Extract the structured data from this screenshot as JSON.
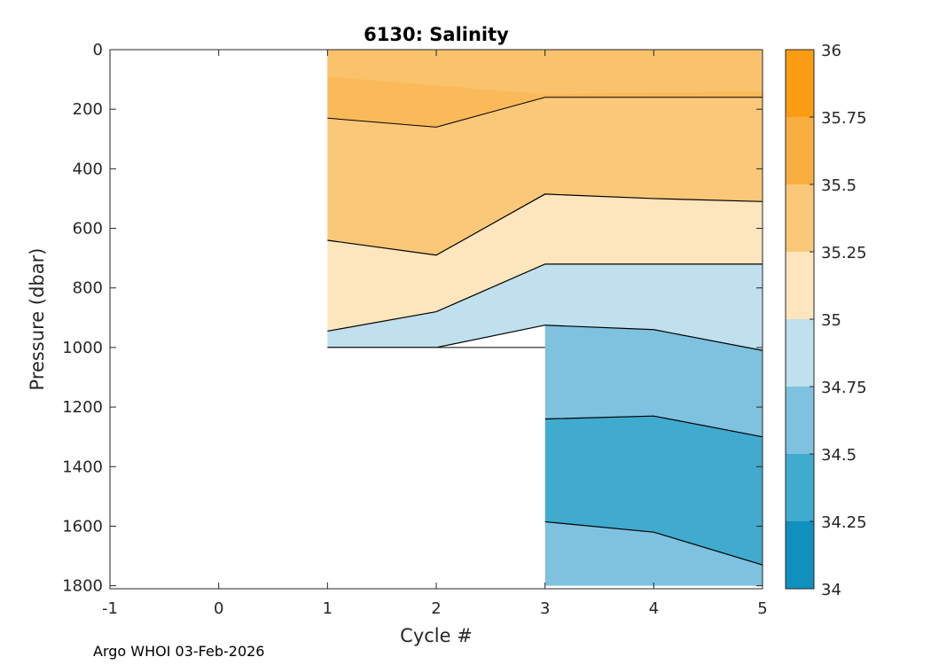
{
  "chart_data": {
    "type": "heatmap",
    "title": "6130:  Salinity",
    "xlabel": "Cycle #",
    "ylabel": "Pressure (dbar)",
    "xlim": [
      -1,
      5
    ],
    "ylim": [
      0,
      1810
    ],
    "y_reversed": true,
    "x_ticks": [
      "-1",
      "0",
      "1",
      "2",
      "3",
      "4",
      "5"
    ],
    "y_ticks": [
      "0",
      "200",
      "400",
      "600",
      "800",
      "1000",
      "1200",
      "1400",
      "1600",
      "1800"
    ],
    "colorbar": {
      "min": 34,
      "max": 36,
      "ticks": [
        "34",
        "34.25",
        "34.5",
        "34.75",
        "35",
        "35.25",
        "35.5",
        "35.75",
        "36"
      ],
      "levels": [
        {
          "from": 34.0,
          "to": 34.25,
          "color": "#0f90bf"
        },
        {
          "from": 34.25,
          "to": 34.5,
          "color": "#40aacf"
        },
        {
          "from": 34.5,
          "to": 34.75,
          "color": "#7ec2df"
        },
        {
          "from": 34.75,
          "to": 35.0,
          "color": "#bfe0ec"
        },
        {
          "from": 35.0,
          "to": 35.25,
          "color": "#fde5bd"
        },
        {
          "from": 35.25,
          "to": 35.5,
          "color": "#fac878"
        },
        {
          "from": 35.5,
          "to": 35.75,
          "color": "#faae40"
        },
        {
          "from": 35.75,
          "to": 36.0,
          "color": "#fb9c14"
        }
      ]
    },
    "profiles": [
      {
        "cycle": 1,
        "max_pressure": 1000
      },
      {
        "cycle": 2,
        "max_pressure": 1000
      },
      {
        "cycle": 3,
        "max_pressure": 1800
      },
      {
        "cycle": 4,
        "max_pressure": 1800
      },
      {
        "cycle": 5,
        "max_pressure": 1800
      }
    ],
    "contours": [
      {
        "level": 35.25,
        "pressure_by_cycle": [
          [
            1,
            640
          ],
          [
            2,
            690
          ],
          [
            3,
            485
          ],
          [
            4,
            500
          ],
          [
            5,
            510
          ]
        ]
      },
      {
        "level": 35.0,
        "pressure_by_cycle": [
          [
            1,
            945
          ],
          [
            2,
            880
          ],
          [
            3,
            720
          ],
          [
            4,
            720
          ],
          [
            5,
            720
          ]
        ]
      },
      {
        "level": 34.75,
        "pressure_by_cycle": [
          [
            1,
            1000
          ],
          [
            2,
            1000
          ],
          [
            3,
            925
          ],
          [
            4,
            940
          ],
          [
            5,
            1010
          ]
        ]
      },
      {
        "level": 34.5,
        "pressure_by_cycle": [
          [
            3,
            1240
          ],
          [
            4,
            1230
          ],
          [
            5,
            1300
          ]
        ]
      },
      {
        "level": 34.25,
        "pressure_by_cycle": [
          [
            3,
            1585
          ],
          [
            4,
            1620
          ],
          [
            5,
            1730
          ]
        ]
      }
    ],
    "surface_layer": {
      "level_high": 35.5,
      "pressure_by_cycle": [
        [
          1,
          230
        ],
        [
          2,
          260
        ],
        [
          3,
          160
        ],
        [
          4,
          160
        ],
        [
          5,
          160
        ]
      ]
    }
  },
  "footer_text": "Argo WHOI 03-Feb-2026"
}
